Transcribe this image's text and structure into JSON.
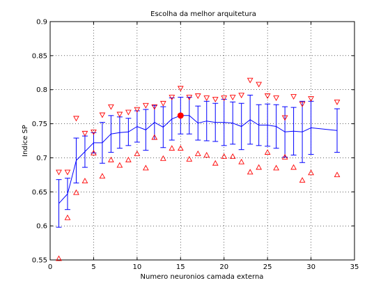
{
  "chart_data": {
    "type": "line",
    "title": "Escolha da melhor arquitetura",
    "xlabel": "Numero neuronios camada externa",
    "ylabel": "Indice SP",
    "xlim": [
      0,
      35
    ],
    "ylim": [
      0.55,
      0.9
    ],
    "xticks": [
      0,
      5,
      10,
      15,
      20,
      25,
      30,
      35
    ],
    "yticks": [
      0.55,
      0.6,
      0.65,
      0.7,
      0.75,
      0.8,
      0.85,
      0.9
    ],
    "grid": true,
    "x": [
      1,
      2,
      3,
      4,
      5,
      6,
      7,
      8,
      9,
      10,
      11,
      12,
      13,
      14,
      15,
      16,
      17,
      18,
      19,
      20,
      21,
      22,
      23,
      24,
      25,
      26,
      27,
      28,
      29,
      30,
      33
    ],
    "mean": [
      0.633,
      0.647,
      0.696,
      0.709,
      0.722,
      0.722,
      0.735,
      0.737,
      0.738,
      0.746,
      0.741,
      0.752,
      0.745,
      0.757,
      0.762,
      0.762,
      0.751,
      0.754,
      0.752,
      0.752,
      0.751,
      0.746,
      0.756,
      0.748,
      0.748,
      0.746,
      0.738,
      0.739,
      0.738,
      0.744,
      0.74
    ],
    "std": [
      0.035,
      0.023,
      0.033,
      0.023,
      0.015,
      0.03,
      0.027,
      0.023,
      0.02,
      0.023,
      0.03,
      0.025,
      0.03,
      0.031,
      0.027,
      0.027,
      0.025,
      0.029,
      0.028,
      0.034,
      0.031,
      0.034,
      0.036,
      0.03,
      0.031,
      0.032,
      0.037,
      0.035,
      0.045,
      0.039,
      0.032
    ],
    "max": [
      0.679,
      0.679,
      0.758,
      0.736,
      0.738,
      0.763,
      0.775,
      0.764,
      0.767,
      0.771,
      0.777,
      0.775,
      0.78,
      0.789,
      0.802,
      0.789,
      0.791,
      0.788,
      0.786,
      0.788,
      0.789,
      0.792,
      0.814,
      0.808,
      0.791,
      0.788,
      0.759,
      0.79,
      0.779,
      0.787,
      0.782
    ],
    "min": [
      0.552,
      0.612,
      0.649,
      0.666,
      0.707,
      0.673,
      0.697,
      0.689,
      0.697,
      0.706,
      0.685,
      0.73,
      0.699,
      0.714,
      0.714,
      0.698,
      0.706,
      0.704,
      0.692,
      0.702,
      0.702,
      0.694,
      0.679,
      0.686,
      0.708,
      0.685,
      0.701,
      0.686,
      0.667,
      0.678,
      0.675
    ],
    "best_point": {
      "x": 15,
      "y": 0.762
    },
    "colors": {
      "mean": "#0000ff",
      "extremes": "#ff0000",
      "best": "#ff0000",
      "grid": "#000000"
    }
  }
}
